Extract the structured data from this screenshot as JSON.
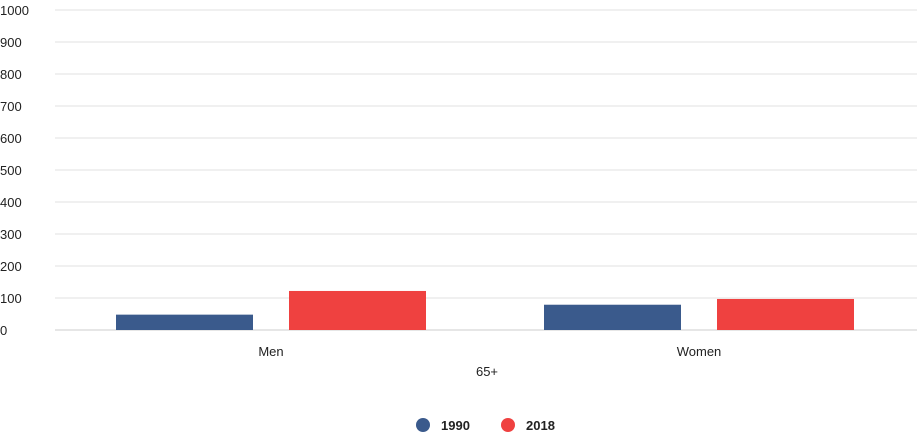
{
  "chart_data": {
    "type": "bar",
    "title": "",
    "xlabel": "65+",
    "ylabel": "",
    "categories": [
      "Men",
      "Women"
    ],
    "series": [
      {
        "name": "1990",
        "values": [
          48,
          79
        ]
      },
      {
        "name": "2018",
        "values": [
          122,
          97
        ]
      }
    ],
    "ylim": [
      0,
      1000
    ],
    "yticks": [
      "0",
      "100",
      "200",
      "300",
      "400",
      "500",
      "600",
      "700",
      "800",
      "900",
      "1000"
    ],
    "grid": true,
    "legend_position": "bottom-center",
    "colors": {
      "1990": "#3a5a8c",
      "2018": "#ef4140",
      "grid": "#e0e0e0",
      "axis": "#cccccc"
    }
  }
}
